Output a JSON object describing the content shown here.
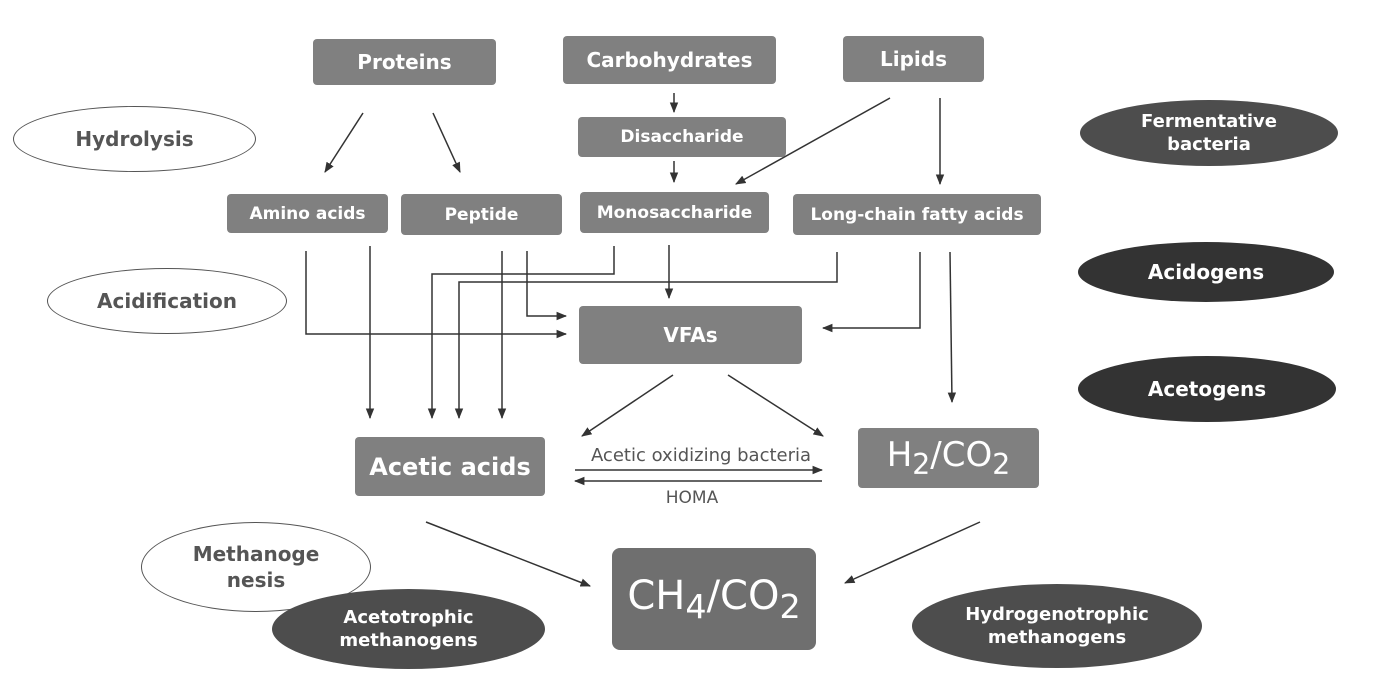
{
  "nodes": {
    "proteins": "Proteins",
    "carbohydrates": "Carbohydrates",
    "lipids": "Lipids",
    "disaccharide": "Disaccharide",
    "amino_acids": "Amino acids",
    "peptide": "Peptide",
    "monosaccharide": "Monosaccharide",
    "long_chain_fatty_acids": "Long-chain fatty acids",
    "vfas": "VFAs",
    "acetic_acids": "Acetic acids",
    "h2co2": {
      "pre": "H",
      "sub1": "2",
      "mid": "/CO",
      "sub2": "2"
    },
    "ch4co2": {
      "pre": "CH",
      "sub1": "4",
      "mid": "/CO",
      "sub2": "2"
    }
  },
  "stages": {
    "hydrolysis": "Hydrolysis",
    "acidification": "Acidification",
    "methanogenesis_line1": "Methanoge",
    "methanogenesis_line2": "nesis"
  },
  "organisms": {
    "fermentative_line1": "Fermentative",
    "fermentative_line2": "bacteria",
    "acidogens": "Acidogens",
    "acetogens": "Acetogens",
    "acetotrophic_line1": "Acetotrophic",
    "acetotrophic_line2": "methanogens",
    "hydrogenotrophic_line1": "Hydrogenotrophic",
    "hydrogenotrophic_line2": "methanogens"
  },
  "edge_labels": {
    "acetic_oxidizing": "Acetic oxidizing bacteria",
    "homa": "HOMA"
  },
  "colors": {
    "box": "#808080",
    "dark_oval": "#4d4d4d",
    "darker_oval": "#333333",
    "text_gray": "#555555",
    "arrow": "#333333"
  }
}
